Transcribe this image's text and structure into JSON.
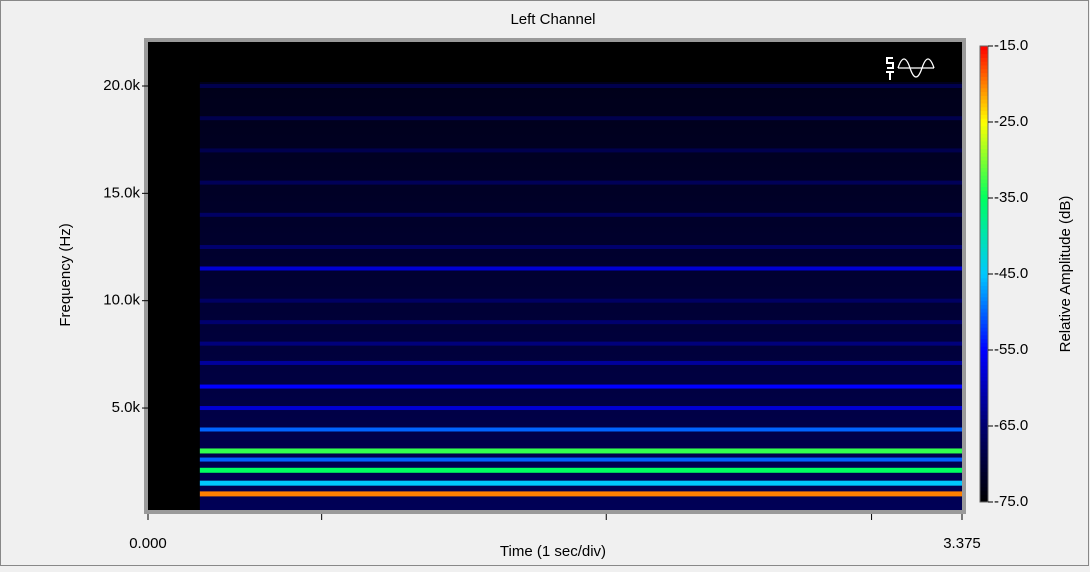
{
  "chart_data": {
    "type": "spectrogram",
    "title": "Left Channel",
    "x_label": "Time (1 sec/div)",
    "y_label": "Frequency (Hz)",
    "colorbar_label": "Relative Amplitude (dB)",
    "xlim": [
      0,
      3.375
    ],
    "xticks": [
      {
        "value": 0,
        "label": "0.000"
      },
      3.375
    ],
    "minor_xticks": [
      0.72,
      1.9,
      3.0
    ],
    "ylim": [
      250,
      22050
    ],
    "yticks": [
      {
        "value": 5000,
        "label": "5.0k"
      },
      {
        "value": 10000,
        "label": "10.0k"
      },
      {
        "value": 15000,
        "label": "15.0k"
      },
      {
        "value": 20000,
        "label": "20.0k"
      }
    ],
    "clim": [
      -75,
      -15
    ],
    "cticks": [
      {
        "value": -15,
        "label": "-15.0"
      },
      {
        "value": -25,
        "label": "-25.0"
      },
      {
        "value": -35,
        "label": "-35.0"
      },
      {
        "value": -45,
        "label": "-45.0"
      },
      {
        "value": -55,
        "label": "-55.0"
      },
      {
        "value": -65,
        "label": "-65.0"
      },
      {
        "value": -75,
        "label": "-75.0"
      }
    ],
    "colormap": [
      "#000000",
      "#00006e",
      "#0000ff",
      "#00c8ff",
      "#00ff60",
      "#ffff00",
      "#ff0000"
    ],
    "onset": 0.215,
    "harmonics": [
      {
        "freq": 1000,
        "level": -20
      },
      {
        "freq": 1500,
        "level": -45
      },
      {
        "freq": 2100,
        "level": -35
      },
      {
        "freq": 2600,
        "level": -50
      },
      {
        "freq": 3000,
        "level": -33
      },
      {
        "freq": 4000,
        "level": -50
      },
      {
        "freq": 5000,
        "level": -58
      },
      {
        "freq": 6000,
        "level": -55
      },
      {
        "freq": 7100,
        "level": -62
      },
      {
        "freq": 8000,
        "level": -64
      },
      {
        "freq": 9000,
        "level": -65
      },
      {
        "freq": 10000,
        "level": -66
      },
      {
        "freq": 11500,
        "level": -58
      },
      {
        "freq": 12500,
        "level": -65
      },
      {
        "freq": 14000,
        "level": -66
      },
      {
        "freq": 15500,
        "level": -67
      },
      {
        "freq": 17000,
        "level": -68
      },
      {
        "freq": 18500,
        "level": -68
      },
      {
        "freq": 20000,
        "level": -68
      }
    ]
  }
}
